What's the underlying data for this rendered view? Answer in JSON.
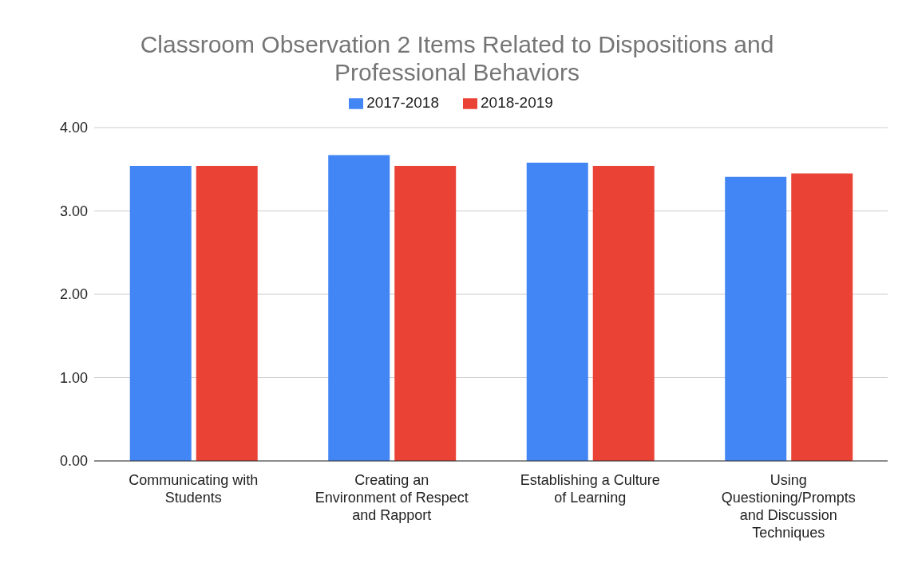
{
  "chart_data": {
    "type": "bar",
    "title": "Classroom Observation 2 Items Related to Dispositions and Professional Behaviors",
    "categories": [
      "Communicating with Students",
      "Creating an Environment of Respect and Rapport",
      "Establishing a Culture of Learning",
      "Using Questioning/Prompts and Discussion Techniques"
    ],
    "series": [
      {
        "name": "2017-2018",
        "color": "#4285f4",
        "values": [
          3.54,
          3.67,
          3.58,
          3.41
        ]
      },
      {
        "name": "2018-2019",
        "color": "#ea4335",
        "values": [
          3.54,
          3.54,
          3.54,
          3.45
        ]
      }
    ],
    "ylim": [
      0,
      4
    ],
    "yticks": [
      {
        "value": 0,
        "label": "0.00"
      },
      {
        "value": 1,
        "label": "1.00"
      },
      {
        "value": 2,
        "label": "2.00"
      },
      {
        "value": 3,
        "label": "3.00"
      },
      {
        "value": 4,
        "label": "4.00"
      }
    ],
    "grid": "y",
    "legend": "top"
  }
}
